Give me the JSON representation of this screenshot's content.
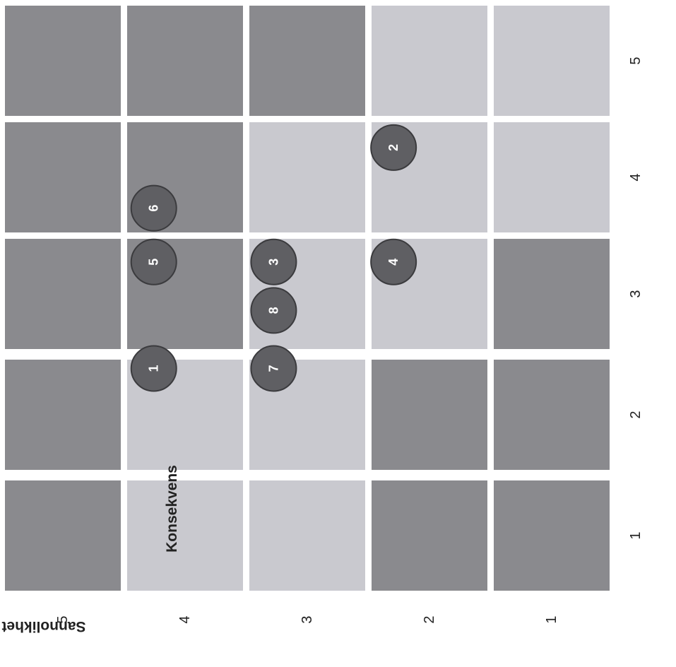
{
  "diagram": {
    "x_axis": {
      "label": "Konsekvens",
      "ticks": [
        "1",
        "2",
        "3",
        "4",
        "5"
      ]
    },
    "y_axis": {
      "label": "Sannolikhet",
      "ticks": [
        "1",
        "2",
        "3",
        "4",
        "5"
      ]
    },
    "rotated_view_degrees": -90
  },
  "colors": {
    "dark": "#8a8a8e",
    "light": "#c9c9cf",
    "marker": "#5f5f63"
  },
  "cells": [
    {
      "k": 1,
      "s": 1,
      "shade": "dark"
    },
    {
      "k": 2,
      "s": 1,
      "shade": "dark"
    },
    {
      "k": 3,
      "s": 1,
      "shade": "dark"
    },
    {
      "k": 4,
      "s": 1,
      "shade": "light"
    },
    {
      "k": 5,
      "s": 1,
      "shade": "light"
    },
    {
      "k": 1,
      "s": 2,
      "shade": "dark"
    },
    {
      "k": 2,
      "s": 2,
      "shade": "dark"
    },
    {
      "k": 3,
      "s": 2,
      "shade": "light"
    },
    {
      "k": 4,
      "s": 2,
      "shade": "light"
    },
    {
      "k": 5,
      "s": 2,
      "shade": "light"
    },
    {
      "k": 1,
      "s": 3,
      "shade": "light"
    },
    {
      "k": 2,
      "s": 3,
      "shade": "light"
    },
    {
      "k": 3,
      "s": 3,
      "shade": "light"
    },
    {
      "k": 4,
      "s": 3,
      "shade": "light"
    },
    {
      "k": 5,
      "s": 3,
      "shade": "dark"
    },
    {
      "k": 1,
      "s": 4,
      "shade": "light"
    },
    {
      "k": 2,
      "s": 4,
      "shade": "light"
    },
    {
      "k": 3,
      "s": 4,
      "shade": "dark"
    },
    {
      "k": 4,
      "s": 4,
      "shade": "dark"
    },
    {
      "k": 5,
      "s": 4,
      "shade": "dark"
    },
    {
      "k": 1,
      "s": 5,
      "shade": "dark"
    },
    {
      "k": 2,
      "s": 5,
      "shade": "dark"
    },
    {
      "k": 3,
      "s": 5,
      "shade": "dark"
    },
    {
      "k": 4,
      "s": 5,
      "shade": "dark"
    },
    {
      "k": 5,
      "s": 5,
      "shade": "dark"
    }
  ],
  "markers": [
    {
      "label": "1",
      "k": 3,
      "s": 4,
      "k_pos": 2.92,
      "s_pos": 4.23
    },
    {
      "label": "2",
      "k": 5,
      "s": 2,
      "k_pos": 4.77,
      "s_pos": 2.19
    },
    {
      "label": "3",
      "k": 4,
      "s": 3,
      "k_pos": 3.79,
      "s_pos": 3.21
    },
    {
      "label": "4",
      "k": 4,
      "s": 2,
      "k_pos": 3.79,
      "s_pos": 2.19
    },
    {
      "label": "5",
      "k": 4,
      "s": 4,
      "k_pos": 3.79,
      "s_pos": 4.23
    },
    {
      "label": "6",
      "k": 4,
      "s": 4,
      "k_pos": 4.22,
      "s_pos": 4.23
    },
    {
      "label": "7",
      "k": 3,
      "s": 3,
      "k_pos": 2.92,
      "s_pos": 3.21
    },
    {
      "label": "8",
      "k": 3,
      "s": 3,
      "k_pos": 3.35,
      "s_pos": 3.21
    }
  ]
}
